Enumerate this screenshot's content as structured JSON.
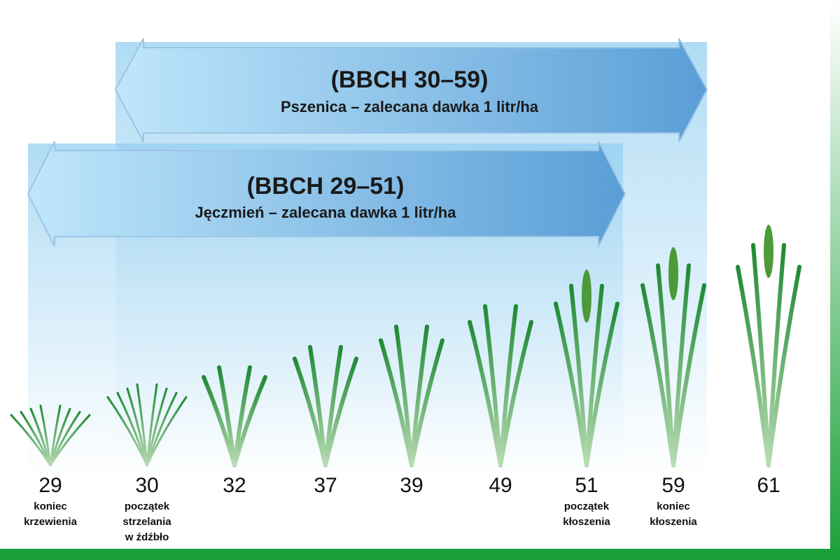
{
  "arrows": [
    {
      "title": "(BBCH 30–59)",
      "subtitle": "Pszenica – zalecana dawka 1 litr/ha"
    },
    {
      "title": "(BBCH 29–51)",
      "subtitle": "Jęczmień – zalecana dawka 1 litr/ha"
    }
  ],
  "stages": [
    {
      "code": 29,
      "label": [
        "koniec",
        "krzewienia"
      ]
    },
    {
      "code": 30,
      "label": [
        "początek",
        "strzelania",
        "w źdźbło"
      ]
    },
    {
      "code": 32,
      "label": []
    },
    {
      "code": 37,
      "label": []
    },
    {
      "code": 39,
      "label": []
    },
    {
      "code": 49,
      "label": []
    },
    {
      "code": 51,
      "label": [
        "początek",
        "kłoszenia"
      ]
    },
    {
      "code": 59,
      "label": [
        "koniec",
        "kłoszenia"
      ]
    },
    {
      "code": 61,
      "label": []
    }
  ]
}
